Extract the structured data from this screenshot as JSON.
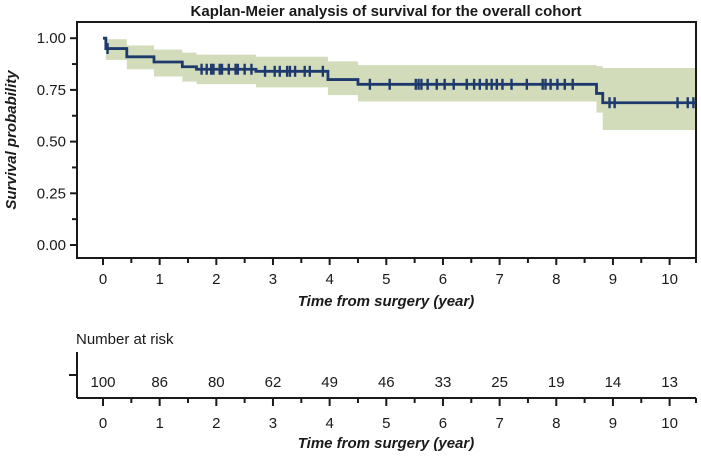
{
  "chart_data": {
    "type": "line",
    "subtype": "kaplan-meier-step",
    "title": "Kaplan-Meier analysis of survival for the overall cohort",
    "xlabel": "Time from surgery (year)",
    "ylabel": "Survival probability",
    "xlim": [
      -0.46,
      10.46
    ],
    "ylim": [
      -0.06,
      1.08
    ],
    "x_tick_values": [
      0,
      1,
      2,
      3,
      4,
      5,
      6,
      7,
      8,
      9,
      10
    ],
    "x_tick_labels": [
      "0",
      "1",
      "2",
      "3",
      "4",
      "5",
      "6",
      "7",
      "8",
      "9",
      "10"
    ],
    "x_minor_ticks": [
      0.5,
      1.5,
      2.5,
      3.5,
      4.5,
      5.5,
      6.5,
      7.5,
      8.5,
      9.5,
      10.5
    ],
    "y_tick_values": [
      0,
      0.25,
      0.5,
      0.75,
      1
    ],
    "y_tick_labels": [
      "0.00",
      "0.25",
      "0.50",
      "0.75",
      "1.00"
    ],
    "y_minor_ticks": [
      0.125,
      0.375,
      0.625,
      0.875
    ],
    "grid": false,
    "legend": "none",
    "colors": {
      "curve": "#1e3a6d",
      "ci_band": "#d3dcba",
      "axis": "#1a1a1a"
    },
    "series": [
      {
        "name": "Overall cohort",
        "steps": [
          [
            0,
            1.0
          ],
          [
            0.05,
            0.95
          ],
          [
            0.42,
            0.91
          ],
          [
            0.9,
            0.885
          ],
          [
            1.4,
            0.862
          ],
          [
            1.65,
            0.85
          ],
          [
            2.7,
            0.84
          ],
          [
            3.97,
            0.8
          ],
          [
            4.5,
            0.777
          ],
          [
            8.71,
            0.733
          ],
          [
            8.82,
            0.688
          ]
        ],
        "end_time": 10.46,
        "censors": [
          [
            0.08,
            0.95
          ],
          [
            1.74,
            0.85
          ],
          [
            1.83,
            0.85
          ],
          [
            1.91,
            0.85
          ],
          [
            1.95,
            0.85
          ],
          [
            2.06,
            0.85
          ],
          [
            2.1,
            0.85
          ],
          [
            2.22,
            0.85
          ],
          [
            2.34,
            0.85
          ],
          [
            2.38,
            0.85
          ],
          [
            2.5,
            0.85
          ],
          [
            2.62,
            0.85
          ],
          [
            2.86,
            0.84
          ],
          [
            3.03,
            0.84
          ],
          [
            3.12,
            0.84
          ],
          [
            3.25,
            0.84
          ],
          [
            3.3,
            0.84
          ],
          [
            3.39,
            0.84
          ],
          [
            3.56,
            0.84
          ],
          [
            3.65,
            0.84
          ],
          [
            3.88,
            0.84
          ],
          [
            4.71,
            0.777
          ],
          [
            5.06,
            0.777
          ],
          [
            5.52,
            0.777
          ],
          [
            5.57,
            0.777
          ],
          [
            5.62,
            0.777
          ],
          [
            5.73,
            0.777
          ],
          [
            5.89,
            0.777
          ],
          [
            6.03,
            0.777
          ],
          [
            6.19,
            0.777
          ],
          [
            6.42,
            0.777
          ],
          [
            6.55,
            0.777
          ],
          [
            6.65,
            0.777
          ],
          [
            6.77,
            0.777
          ],
          [
            6.86,
            0.777
          ],
          [
            6.95,
            0.777
          ],
          [
            7.05,
            0.777
          ],
          [
            7.21,
            0.777
          ],
          [
            7.48,
            0.777
          ],
          [
            7.76,
            0.777
          ],
          [
            7.81,
            0.777
          ],
          [
            7.9,
            0.777
          ],
          [
            8.02,
            0.777
          ],
          [
            8.15,
            0.777
          ],
          [
            8.29,
            0.777
          ],
          [
            8.94,
            0.688
          ],
          [
            9.03,
            0.688
          ],
          [
            10.14,
            0.688
          ],
          [
            10.32,
            0.688
          ],
          [
            10.42,
            0.688
          ]
        ],
        "ci": [
          [
            0.05,
            0.995,
            0.895
          ],
          [
            0.42,
            0.965,
            0.85
          ],
          [
            0.9,
            0.945,
            0.815
          ],
          [
            1.4,
            0.93,
            0.79
          ],
          [
            1.65,
            0.92,
            0.778
          ],
          [
            2.7,
            0.91,
            0.762
          ],
          [
            3.97,
            0.888,
            0.725
          ],
          [
            4.5,
            0.87,
            0.694
          ],
          [
            8.71,
            0.865,
            0.64
          ],
          [
            8.82,
            0.856,
            0.556
          ]
        ]
      }
    ],
    "risk_table": {
      "title": "Number at risk",
      "times": [
        0,
        1,
        2,
        3,
        4,
        5,
        6,
        7,
        8,
        9,
        10
      ],
      "counts": [
        100,
        86,
        80,
        62,
        49,
        46,
        33,
        25,
        19,
        14,
        13
      ]
    }
  }
}
